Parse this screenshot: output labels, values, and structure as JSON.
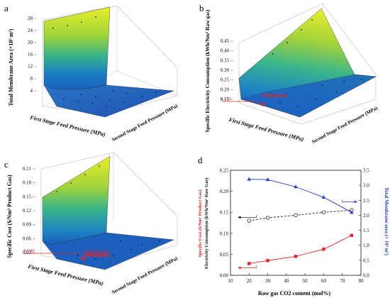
{
  "panels": [
    {
      "letter": "a",
      "zlabel": "Total Membrane Area (×10³ m²)",
      "xlabel": "First Stage Feed Pressure (MPa)",
      "ylabel": "Second Stage Feed Pressure (MPa)",
      "zticks": [
        "28",
        "24",
        "20",
        "16",
        "12",
        "8",
        "4"
      ]
    },
    {
      "letter": "b",
      "zlabel": "Specific Electricity Consumption (kWh/Nm³ Raw gas)",
      "xlabel": "First Stage Feed Pressure (MPa)",
      "ylabel": "Second Stage Feed Pressure (MPa)",
      "zticks": [
        "0.45",
        "0.40",
        "0.35",
        "0.30",
        "0.25",
        "0.20",
        "0.15"
      ],
      "min_value": "0.133",
      "annotation": "Minimum"
    },
    {
      "letter": "c",
      "zlabel": "Specific Cost ($/Nm³ Product Gas)",
      "xlabel": "First Stage Feed Pressure (MPa)",
      "ylabel": "Second Stage Feed Pressure (MPa)",
      "zticks": [
        "0.21",
        "0.18",
        "0.15",
        "0.12",
        "0.09",
        "0.06",
        "0.03"
      ],
      "min_value": "0.040",
      "annotation": "Minimum"
    }
  ],
  "chart_data": {
    "letter": "d",
    "type": "line",
    "xlabel": "Raw gas CO2 content (mol%)",
    "ylabel_left_red": "Specific Cost ($/Nm³ Product Gas)",
    "ylabel_left_black": "Electricity Consumption (kWh/Nm³ Raw Gas)",
    "ylabel_right": "Total Membrane area (× 10³ m²)",
    "xlim": [
      10,
      80
    ],
    "ylim_left": [
      0.0,
      0.25
    ],
    "ylim_right": [
      0.0,
      3.5
    ],
    "xticks": [
      "10",
      "20",
      "30",
      "40",
      "50",
      "60",
      "70",
      "80"
    ],
    "yticks_left": [
      "0.00",
      "0.05",
      "0.10",
      "0.15",
      "0.20",
      "0.25"
    ],
    "yticks_right": [
      "0.0",
      "0.5",
      "1.0",
      "1.5",
      "2.0",
      "2.5",
      "3.0",
      "3.5"
    ],
    "series": [
      {
        "axis": "left",
        "color": "#e8242a",
        "marker": "square",
        "dash": false,
        "points": [
          [
            20,
            0.028
          ],
          [
            30,
            0.035
          ],
          [
            45,
            0.045
          ],
          [
            60,
            0.062
          ],
          [
            75,
            0.095
          ]
        ]
      },
      {
        "axis": "left",
        "color": "#222222",
        "marker": "circle",
        "dash": true,
        "points": [
          [
            20,
            0.13
          ],
          [
            30,
            0.137
          ],
          [
            45,
            0.143
          ],
          [
            60,
            0.15
          ],
          [
            75,
            0.155
          ]
        ]
      },
      {
        "axis": "right",
        "color": "#2a3fcf",
        "marker": "triangle",
        "dash": false,
        "points": [
          [
            20,
            3.2
          ],
          [
            30,
            3.19
          ],
          [
            45,
            2.95
          ],
          [
            60,
            2.6
          ],
          [
            75,
            2.1
          ]
        ]
      }
    ]
  }
}
